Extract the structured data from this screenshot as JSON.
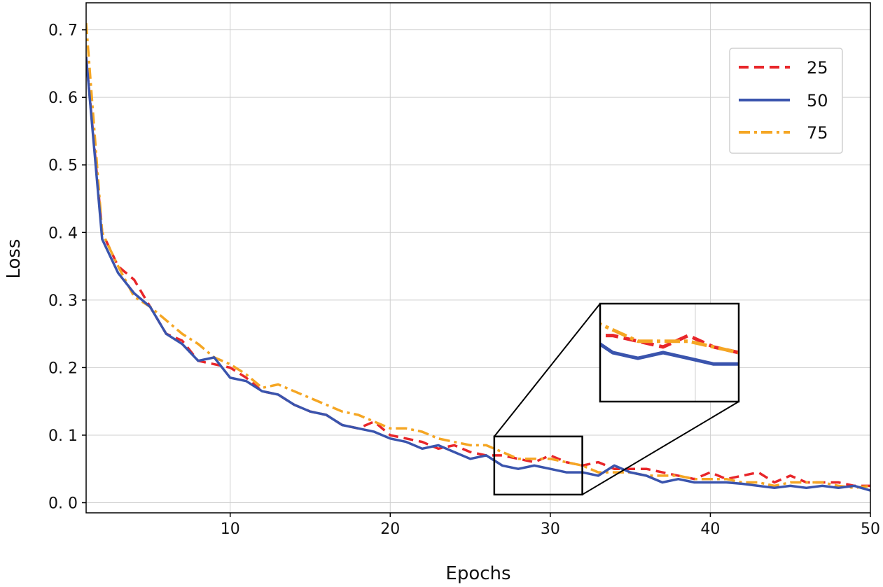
{
  "chart_data": {
    "type": "line",
    "xlabel": "Epochs",
    "ylabel": "Loss",
    "xlim": [
      1,
      50
    ],
    "ylim": [
      -0.015,
      0.74
    ],
    "xticks": [
      10,
      20,
      30,
      40,
      50
    ],
    "xtick_labels": [
      "10",
      "20",
      "30",
      "40",
      "50"
    ],
    "yticks": [
      0.0,
      0.1,
      0.2,
      0.3,
      0.4,
      0.5,
      0.6,
      0.7
    ],
    "ytick_labels": [
      "0. 0",
      "0. 1",
      "0. 2",
      "0. 3",
      "0. 4",
      "0. 5",
      "0. 6",
      "0. 7"
    ],
    "grid": true,
    "legend_position": "top-right",
    "series": [
      {
        "name": "25",
        "color": "#e8262a",
        "style": "dashed",
        "x": [
          1,
          2,
          3,
          4,
          5,
          6,
          7,
          8,
          9,
          10,
          11,
          12,
          13,
          14,
          15,
          16,
          17,
          18,
          19,
          20,
          21,
          22,
          23,
          24,
          25,
          26,
          27,
          28,
          29,
          30,
          31,
          32,
          33,
          34,
          35,
          36,
          37,
          38,
          39,
          40,
          41,
          42,
          43,
          44,
          45,
          46,
          47,
          48,
          49,
          50
        ],
        "values": [
          0.66,
          0.4,
          0.35,
          0.33,
          0.29,
          0.25,
          0.24,
          0.21,
          0.205,
          0.2,
          0.185,
          0.165,
          0.16,
          0.145,
          0.135,
          0.13,
          0.115,
          0.11,
          0.12,
          0.1,
          0.095,
          0.09,
          0.08,
          0.085,
          0.075,
          0.07,
          0.07,
          0.065,
          0.06,
          0.07,
          0.06,
          0.055,
          0.06,
          0.05,
          0.05,
          0.05,
          0.045,
          0.04,
          0.035,
          0.045,
          0.035,
          0.04,
          0.045,
          0.03,
          0.04,
          0.03,
          0.03,
          0.03,
          0.025,
          0.025
        ]
      },
      {
        "name": "50",
        "color": "#3a54ad",
        "style": "solid",
        "x": [
          1,
          2,
          3,
          4,
          5,
          6,
          7,
          8,
          9,
          10,
          11,
          12,
          13,
          14,
          15,
          16,
          17,
          18,
          19,
          20,
          21,
          22,
          23,
          24,
          25,
          26,
          27,
          28,
          29,
          30,
          31,
          32,
          33,
          34,
          35,
          36,
          37,
          38,
          39,
          40,
          41,
          42,
          43,
          44,
          45,
          46,
          47,
          48,
          49,
          50
        ],
        "values": [
          0.66,
          0.39,
          0.34,
          0.31,
          0.29,
          0.25,
          0.235,
          0.21,
          0.215,
          0.185,
          0.18,
          0.165,
          0.16,
          0.145,
          0.135,
          0.13,
          0.115,
          0.11,
          0.105,
          0.095,
          0.09,
          0.08,
          0.085,
          0.075,
          0.065,
          0.07,
          0.055,
          0.05,
          0.055,
          0.05,
          0.045,
          0.045,
          0.04,
          0.055,
          0.045,
          0.04,
          0.03,
          0.035,
          0.03,
          0.03,
          0.03,
          0.028,
          0.025,
          0.022,
          0.025,
          0.022,
          0.025,
          0.022,
          0.025,
          0.018
        ]
      },
      {
        "name": "75",
        "color": "#f5a623",
        "style": "dashdot",
        "x": [
          1,
          2,
          3,
          4,
          5,
          6,
          7,
          8,
          9,
          10,
          11,
          12,
          13,
          14,
          15,
          16,
          17,
          18,
          19,
          20,
          21,
          22,
          23,
          24,
          25,
          26,
          27,
          28,
          29,
          30,
          31,
          32,
          33,
          34,
          35,
          36,
          37,
          38,
          39,
          40,
          41,
          42,
          43,
          44,
          45,
          46,
          47,
          48,
          49,
          50
        ],
        "values": [
          0.71,
          0.4,
          0.35,
          0.305,
          0.29,
          0.27,
          0.25,
          0.235,
          0.215,
          0.205,
          0.19,
          0.17,
          0.175,
          0.165,
          0.155,
          0.145,
          0.135,
          0.13,
          0.12,
          0.11,
          0.11,
          0.105,
          0.095,
          0.09,
          0.085,
          0.085,
          0.075,
          0.065,
          0.065,
          0.065,
          0.06,
          0.055,
          0.045,
          0.045,
          0.045,
          0.04,
          0.04,
          0.04,
          0.035,
          0.035,
          0.035,
          0.03,
          0.03,
          0.025,
          0.03,
          0.03,
          0.03,
          0.025,
          0.022,
          0.025
        ]
      }
    ],
    "inset": {
      "x_range": [
        26.5,
        32
      ],
      "y_range": [
        0.012,
        0.098
      ]
    }
  }
}
